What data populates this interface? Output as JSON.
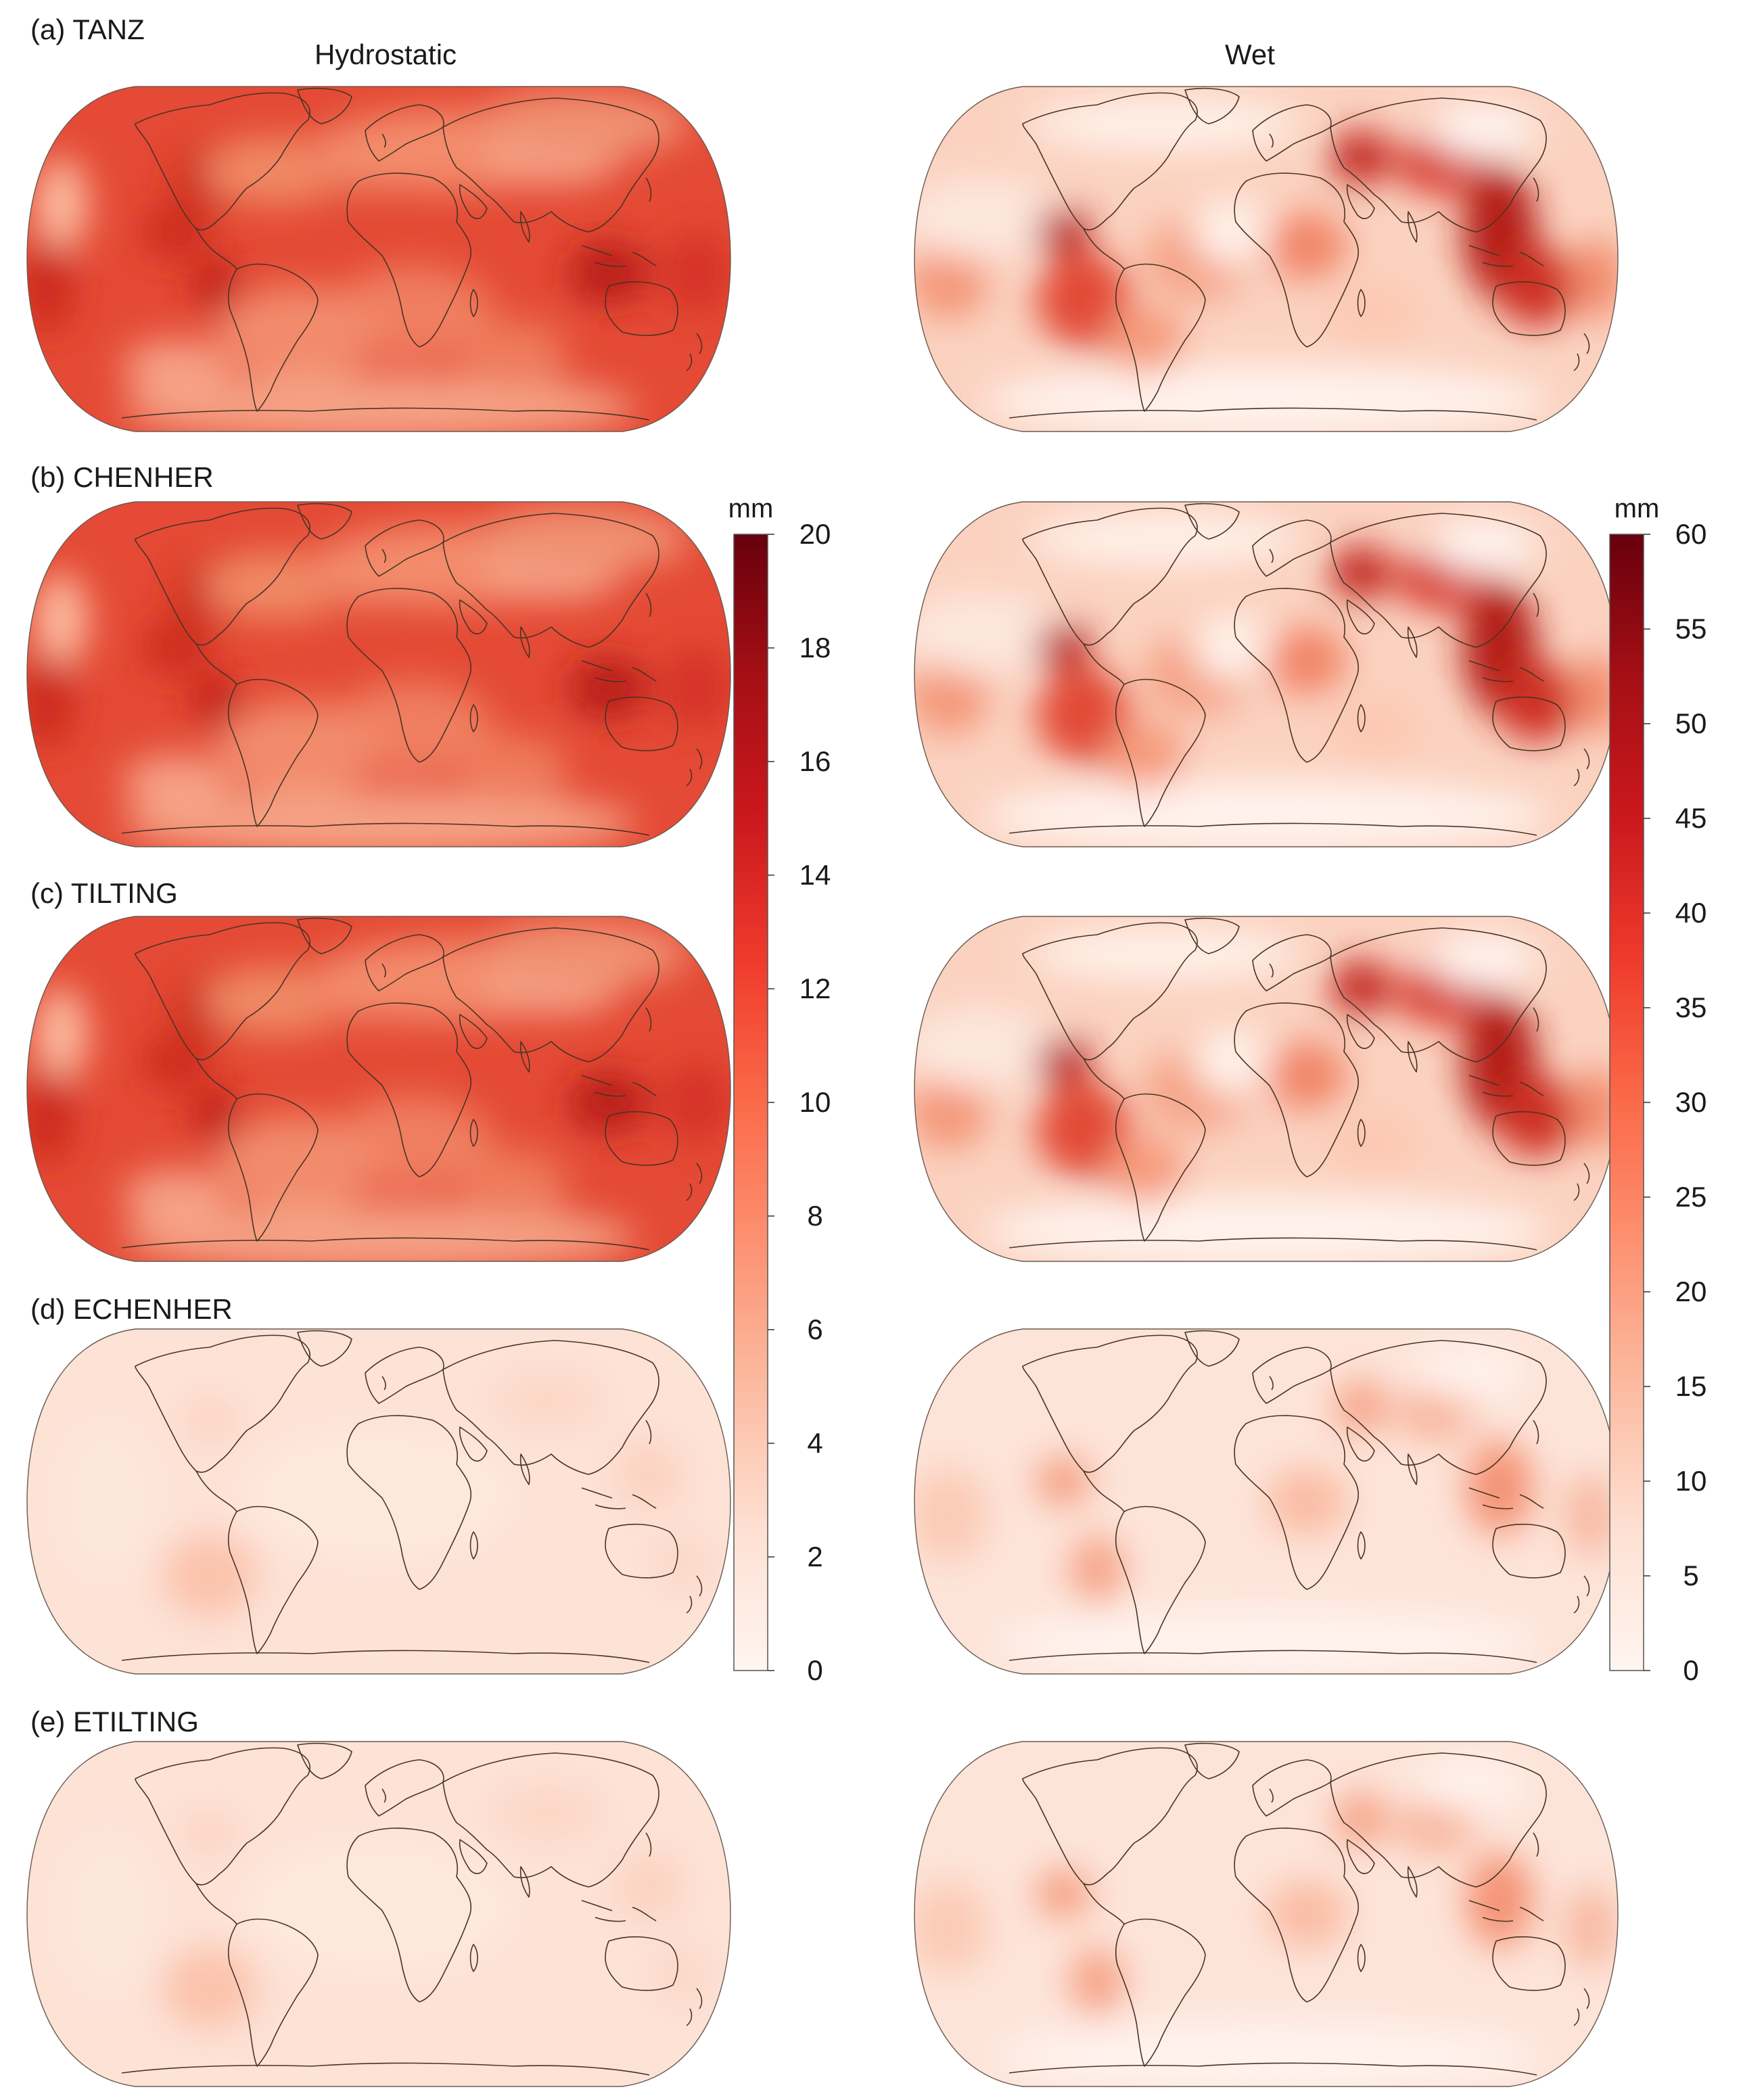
{
  "columns": [
    "Hydrostatic",
    "Wet"
  ],
  "panels": [
    {
      "label": "(a) TANZ",
      "hydrostatic_level": "high",
      "wet_level": "high"
    },
    {
      "label": "(b) CHENHER",
      "hydrostatic_level": "high",
      "wet_level": "high"
    },
    {
      "label": "(c) TILTING",
      "hydrostatic_level": "high",
      "wet_level": "high"
    },
    {
      "label": "(d) ECHENHER",
      "hydrostatic_level": "low",
      "wet_level": "low"
    },
    {
      "label": "(e) ETILTING",
      "hydrostatic_level": "low",
      "wet_level": "low"
    }
  ],
  "colorbars": {
    "hydrostatic": {
      "unit": "mm",
      "min": 0,
      "max": 20,
      "ticks": [
        "0",
        "2",
        "4",
        "6",
        "8",
        "10",
        "12",
        "14",
        "16",
        "18",
        "20"
      ]
    },
    "wet": {
      "unit": "mm",
      "min": 0,
      "max": 60,
      "ticks": [
        "0",
        "5",
        "10",
        "15",
        "20",
        "25",
        "30",
        "35",
        "40",
        "45",
        "50",
        "55",
        "60"
      ]
    }
  },
  "colormap": [
    "#fff5f0",
    "#fee0d2",
    "#fcbba1",
    "#fc9272",
    "#fb6a4a",
    "#ef3b2c",
    "#cb181d",
    "#a50f15",
    "#67000d"
  ]
}
